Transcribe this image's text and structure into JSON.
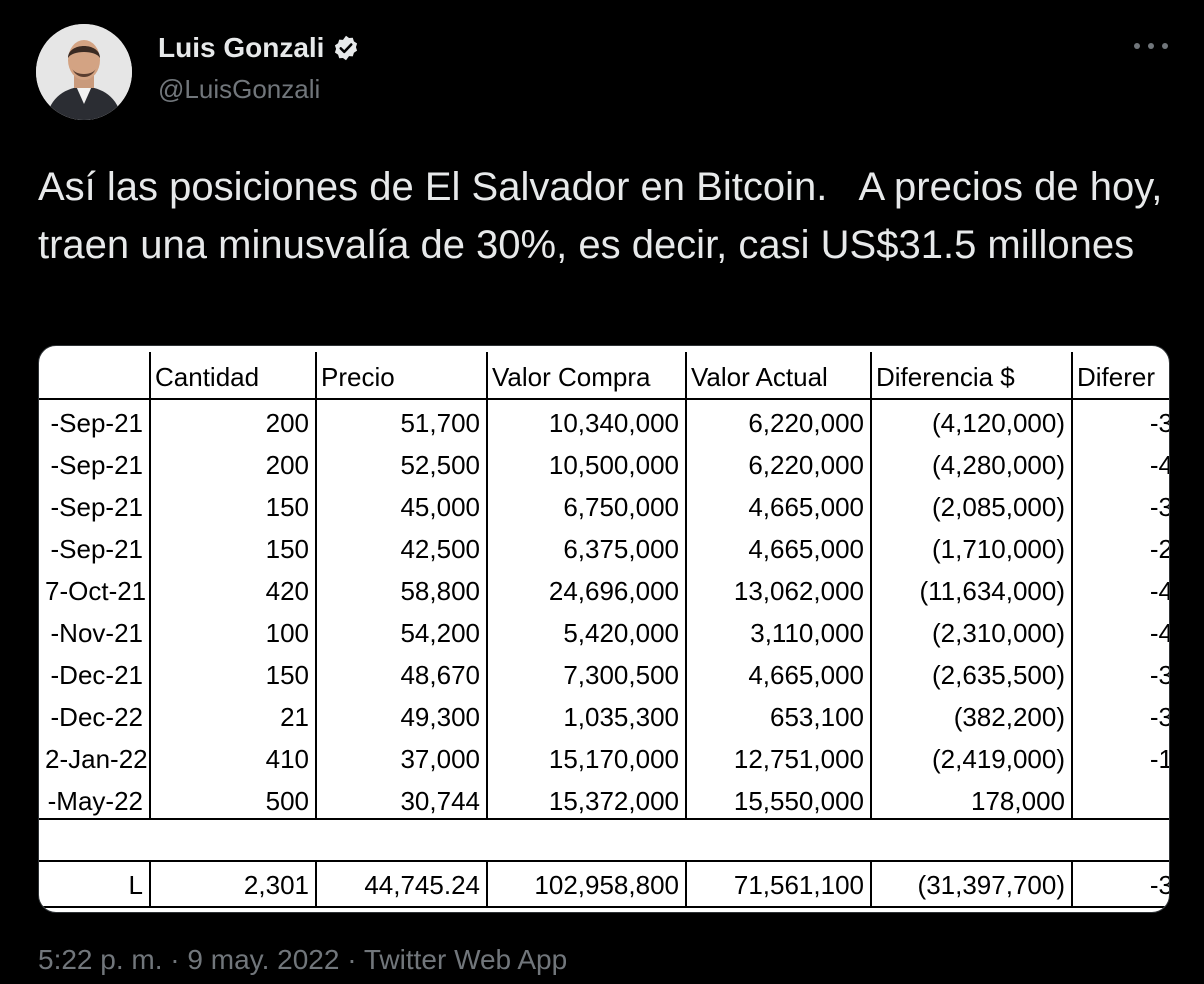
{
  "author": {
    "name": "Luis Gonzali",
    "handle": "@LuisGonzali",
    "verified_icon": "verified-badge-icon"
  },
  "tweet": {
    "text": "Así las posiciones de El Salvador en Bitcoin.   A precios de hoy, traen una minusvalía de 30%, es decir, casi US$31.5 millones"
  },
  "table": {
    "headers": [
      "",
      "Cantidad",
      "Precio",
      "Valor Compra",
      "Valor Actual",
      "Diferencia $",
      "Diferer"
    ],
    "rows": [
      [
        "-Sep-21",
        "200",
        "51,700",
        "10,340,000",
        "6,220,000",
        "(4,120,000)",
        "-3"
      ],
      [
        "-Sep-21",
        "200",
        "52,500",
        "10,500,000",
        "6,220,000",
        "(4,280,000)",
        "-4"
      ],
      [
        "-Sep-21",
        "150",
        "45,000",
        "6,750,000",
        "4,665,000",
        "(2,085,000)",
        "-3"
      ],
      [
        "-Sep-21",
        "150",
        "42,500",
        "6,375,000",
        "4,665,000",
        "(1,710,000)",
        "-2"
      ],
      [
        "7-Oct-21",
        "420",
        "58,800",
        "24,696,000",
        "13,062,000",
        "(11,634,000)",
        "-4"
      ],
      [
        "-Nov-21",
        "100",
        "54,200",
        "5,420,000",
        "3,110,000",
        "(2,310,000)",
        "-4"
      ],
      [
        "-Dec-21",
        "150",
        "48,670",
        "7,300,500",
        "4,665,000",
        "(2,635,500)",
        "-3"
      ],
      [
        "-Dec-22",
        "21",
        "49,300",
        "1,035,300",
        "653,100",
        "(382,200)",
        "-3"
      ],
      [
        "2-Jan-22",
        "410",
        "37,000",
        "15,170,000",
        "12,751,000",
        "(2,419,000)",
        "-1"
      ],
      [
        "-May-22",
        "500",
        "30,744",
        "15,372,000",
        "15,550,000",
        "178,000",
        ""
      ],
      [
        "",
        "",
        "",
        "",
        "",
        "",
        ""
      ],
      [
        "L",
        "2,301",
        "44,745.24",
        "102,958,800",
        "71,561,100",
        "(31,397,700)",
        "-3"
      ]
    ]
  },
  "meta": {
    "time": "5:22 p. m.",
    "sep1": " · ",
    "date": "9 may. 2022",
    "sep2": " · ",
    "source": "Twitter Web App"
  }
}
